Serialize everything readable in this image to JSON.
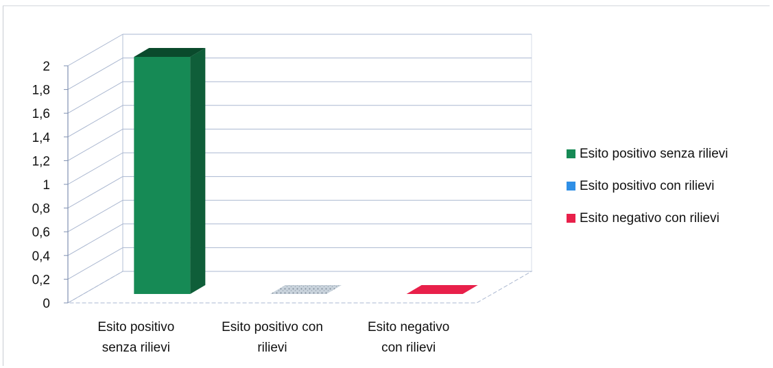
{
  "chart_data": {
    "type": "bar",
    "categories": [
      [
        "Esito positivo",
        "senza rilievi"
      ],
      [
        "Esito positivo con",
        "rilievi"
      ],
      [
        "Esito negativo",
        "con rilievi"
      ]
    ],
    "series": [
      {
        "name": "Esito positivo senza rilievi",
        "values": [
          2,
          0,
          0
        ]
      },
      {
        "name": "Esito positivo con rilievi",
        "values": [
          0,
          0,
          0
        ]
      },
      {
        "name": "Esito negativo con rilievi",
        "values": [
          0,
          0,
          0
        ]
      }
    ],
    "values": [
      2,
      0,
      0
    ],
    "ylim": [
      0,
      2
    ],
    "yticks": [
      "0",
      "0,2",
      "0,4",
      "0,6",
      "0,8",
      "1",
      "1,2",
      "1,4",
      "1,6",
      "1,8",
      "2"
    ],
    "grid": true,
    "three_d": true,
    "legend_position": "right",
    "colors": [
      "#168a55",
      "#2f8fe6",
      "#e8204a"
    ],
    "title": "",
    "xlabel": "",
    "ylabel": ""
  }
}
